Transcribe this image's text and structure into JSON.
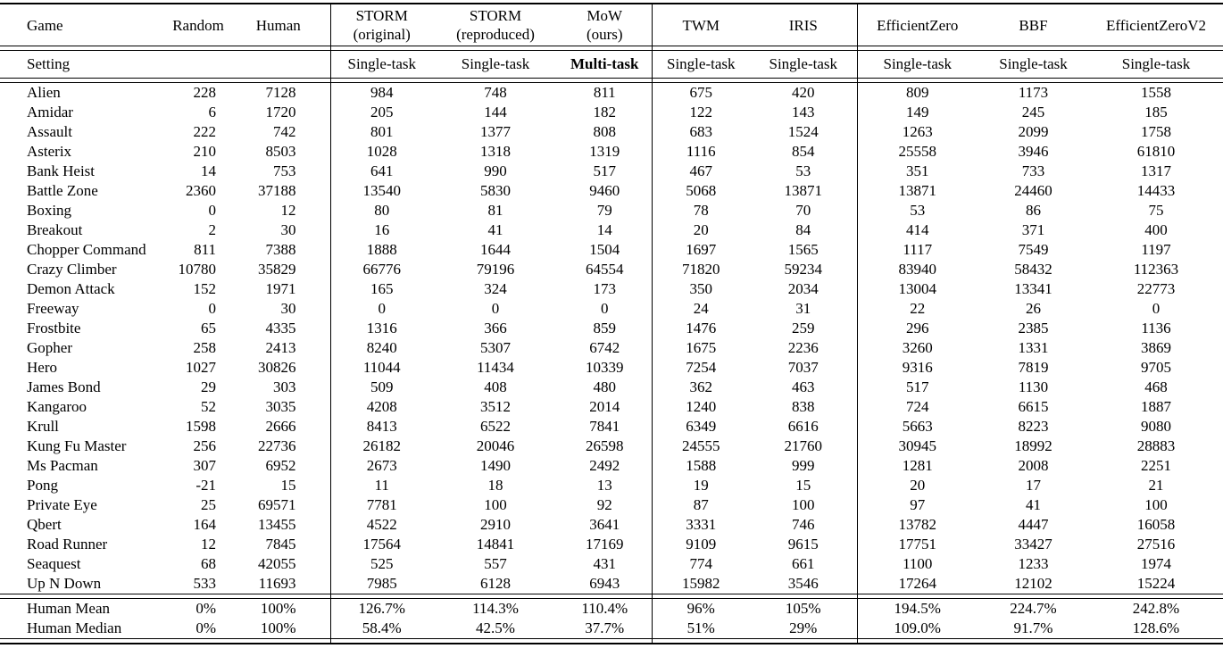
{
  "table": {
    "header": {
      "game": "Game",
      "columns": [
        {
          "name": "Random",
          "sub": ""
        },
        {
          "name": "Human",
          "sub": ""
        },
        {
          "name": "STORM",
          "sub": "(original)"
        },
        {
          "name": "STORM",
          "sub": "(reproduced)"
        },
        {
          "name": "MoW",
          "sub": "(ours)"
        },
        {
          "name": "TWM",
          "sub": ""
        },
        {
          "name": "IRIS",
          "sub": ""
        },
        {
          "name": "EfficientZero",
          "sub": ""
        },
        {
          "name": "BBF",
          "sub": ""
        },
        {
          "name": "EfficientZeroV2",
          "sub": ""
        }
      ]
    },
    "setting": {
      "label": "Setting",
      "values": [
        "Single-task",
        "Single-task",
        "Multi-task",
        "Single-task",
        "Single-task",
        "Single-task",
        "Single-task",
        "Single-task"
      ]
    },
    "rows": [
      {
        "game": "Alien",
        "values": [
          "228",
          "7128",
          "984",
          "748",
          "811",
          "675",
          "420",
          "809",
          "1173",
          "1558"
        ]
      },
      {
        "game": "Amidar",
        "values": [
          "6",
          "1720",
          "205",
          "144",
          "182",
          "122",
          "143",
          "149",
          "245",
          "185"
        ]
      },
      {
        "game": "Assault",
        "values": [
          "222",
          "742",
          "801",
          "1377",
          "808",
          "683",
          "1524",
          "1263",
          "2099",
          "1758"
        ]
      },
      {
        "game": "Asterix",
        "values": [
          "210",
          "8503",
          "1028",
          "1318",
          "1319",
          "1116",
          "854",
          "25558",
          "3946",
          "61810"
        ]
      },
      {
        "game": "Bank Heist",
        "values": [
          "14",
          "753",
          "641",
          "990",
          "517",
          "467",
          "53",
          "351",
          "733",
          "1317"
        ]
      },
      {
        "game": "Battle Zone",
        "values": [
          "2360",
          "37188",
          "13540",
          "5830",
          "9460",
          "5068",
          "13871",
          "13871",
          "24460",
          "14433"
        ]
      },
      {
        "game": "Boxing",
        "values": [
          "0",
          "12",
          "80",
          "81",
          "79",
          "78",
          "70",
          "53",
          "86",
          "75"
        ]
      },
      {
        "game": "Breakout",
        "values": [
          "2",
          "30",
          "16",
          "41",
          "14",
          "20",
          "84",
          "414",
          "371",
          "400"
        ]
      },
      {
        "game": "Chopper Command",
        "values": [
          "811",
          "7388",
          "1888",
          "1644",
          "1504",
          "1697",
          "1565",
          "1117",
          "7549",
          "1197"
        ]
      },
      {
        "game": "Crazy Climber",
        "values": [
          "10780",
          "35829",
          "66776",
          "79196",
          "64554",
          "71820",
          "59234",
          "83940",
          "58432",
          "112363"
        ]
      },
      {
        "game": "Demon Attack",
        "values": [
          "152",
          "1971",
          "165",
          "324",
          "173",
          "350",
          "2034",
          "13004",
          "13341",
          "22773"
        ]
      },
      {
        "game": "Freeway",
        "values": [
          "0",
          "30",
          "0",
          "0",
          "0",
          "24",
          "31",
          "22",
          "26",
          "0"
        ]
      },
      {
        "game": "Frostbite",
        "values": [
          "65",
          "4335",
          "1316",
          "366",
          "859",
          "1476",
          "259",
          "296",
          "2385",
          "1136"
        ]
      },
      {
        "game": "Gopher",
        "values": [
          "258",
          "2413",
          "8240",
          "5307",
          "6742",
          "1675",
          "2236",
          "3260",
          "1331",
          "3869"
        ]
      },
      {
        "game": "Hero",
        "values": [
          "1027",
          "30826",
          "11044",
          "11434",
          "10339",
          "7254",
          "7037",
          "9316",
          "7819",
          "9705"
        ]
      },
      {
        "game": "James Bond",
        "values": [
          "29",
          "303",
          "509",
          "408",
          "480",
          "362",
          "463",
          "517",
          "1130",
          "468"
        ]
      },
      {
        "game": "Kangaroo",
        "values": [
          "52",
          "3035",
          "4208",
          "3512",
          "2014",
          "1240",
          "838",
          "724",
          "6615",
          "1887"
        ]
      },
      {
        "game": "Krull",
        "values": [
          "1598",
          "2666",
          "8413",
          "6522",
          "7841",
          "6349",
          "6616",
          "5663",
          "8223",
          "9080"
        ]
      },
      {
        "game": "Kung Fu Master",
        "values": [
          "256",
          "22736",
          "26182",
          "20046",
          "26598",
          "24555",
          "21760",
          "30945",
          "18992",
          "28883"
        ]
      },
      {
        "game": "Ms Pacman",
        "values": [
          "307",
          "6952",
          "2673",
          "1490",
          "2492",
          "1588",
          "999",
          "1281",
          "2008",
          "2251"
        ]
      },
      {
        "game": "Pong",
        "values": [
          "-21",
          "15",
          "11",
          "18",
          "13",
          "19",
          "15",
          "20",
          "17",
          "21"
        ]
      },
      {
        "game": "Private Eye",
        "values": [
          "25",
          "69571",
          "7781",
          "100",
          "92",
          "87",
          "100",
          "97",
          "41",
          "100"
        ]
      },
      {
        "game": "Qbert",
        "values": [
          "164",
          "13455",
          "4522",
          "2910",
          "3641",
          "3331",
          "746",
          "13782",
          "4447",
          "16058"
        ]
      },
      {
        "game": "Road Runner",
        "values": [
          "12",
          "7845",
          "17564",
          "14841",
          "17169",
          "9109",
          "9615",
          "17751",
          "33427",
          "27516"
        ]
      },
      {
        "game": "Seaquest",
        "values": [
          "68",
          "42055",
          "525",
          "557",
          "431",
          "774",
          "661",
          "1100",
          "1233",
          "1974"
        ]
      },
      {
        "game": "Up N Down",
        "values": [
          "533",
          "11693",
          "7985",
          "6128",
          "6943",
          "15982",
          "3546",
          "17264",
          "12102",
          "15224"
        ]
      }
    ],
    "footer": [
      {
        "label": "Human Mean",
        "values": [
          "0%",
          "100%",
          "126.7%",
          "114.3%",
          "110.4%",
          "96%",
          "105%",
          "194.5%",
          "224.7%",
          "242.8%"
        ]
      },
      {
        "label": "Human Median",
        "values": [
          "0%",
          "100%",
          "58.4%",
          "42.5%",
          "37.7%",
          "51%",
          "29%",
          "109.0%",
          "91.7%",
          "128.6%"
        ]
      }
    ]
  }
}
